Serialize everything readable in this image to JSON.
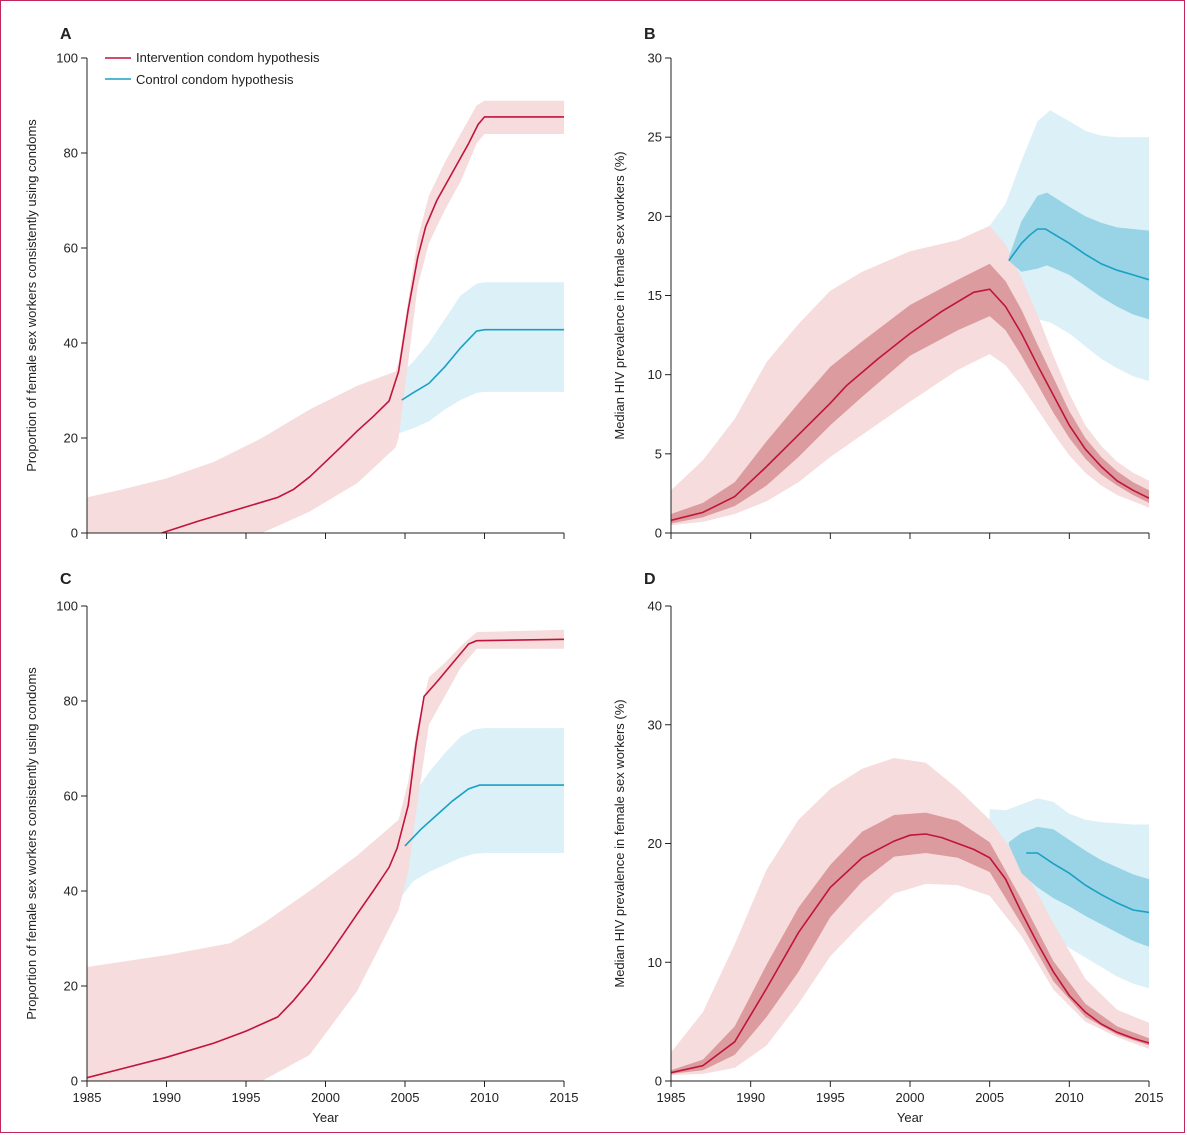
{
  "colors": {
    "intervention": "#c0143c",
    "intervention_band_outer": "#f6dcdc",
    "intervention_band_inner": "#dc9b9e",
    "control": "#1aa0c4",
    "control_band_outer": "#dcf0f7",
    "control_band_inner": "#98d4e6",
    "frame": "#c0285a"
  },
  "legend": [
    {
      "label": "Intervention condom hypothesis",
      "color": "#c0143c"
    },
    {
      "label": "Control condom hypothesis",
      "color": "#1aa0c4"
    }
  ],
  "chart_data": [
    {
      "panel": "A",
      "type": "line",
      "ylabel": "Proportion of female sex workers consistently using condoms",
      "xlabel": "",
      "xlim": [
        1985,
        2015
      ],
      "ylim": [
        0,
        100
      ],
      "xticks": [
        1985,
        1990,
        1995,
        2000,
        2005,
        2010,
        2015
      ],
      "yticks": [
        0,
        20,
        40,
        60,
        80,
        100
      ],
      "show_xtick_labels": false,
      "series": [
        {
          "name": "Intervention condom hypothesis",
          "color": "#c0143c",
          "x": [
            1989.7,
            1992,
            1995,
            1997,
            1998,
            1999,
            2000,
            2001,
            2002,
            2003,
            2004,
            2004.6,
            2005.2,
            2005.8,
            2006.3,
            2007,
            2008,
            2009,
            2009.6,
            2010,
            2015
          ],
          "median": [
            0,
            2.5,
            5.5,
            7.5,
            9.2,
            11.8,
            15,
            18.2,
            21.5,
            24.5,
            27.8,
            34,
            47,
            58,
            64.5,
            70,
            76,
            82,
            86,
            87.6,
            87.6
          ],
          "band_outer": {
            "x": [
              1985,
              1987,
              1990,
              1993,
              1996,
              1999,
              2002,
              2004.4,
              2004.6,
              2005.2,
              2005.8,
              2006.5,
              2007.5,
              2008.5,
              2009.5,
              2010,
              2015
            ],
            "lower": [
              0,
              0,
              0,
              0,
              0,
              4.5,
              10.5,
              18,
              20,
              36,
              52,
              61,
              68,
              74,
              82,
              84,
              84
            ],
            "upper": [
              7.5,
              9,
              11.5,
              15,
              20,
              26,
              31,
              34,
              36,
              49,
              62,
              71,
              78,
              84,
              90,
              91,
              91
            ]
          }
        },
        {
          "name": "Control condom hypothesis",
          "color": "#1aa0c4",
          "x": [
            2004.8,
            2005.5,
            2006.5,
            2007.5,
            2008.5,
            2009.5,
            2010,
            2015
          ],
          "median": [
            28,
            29.5,
            31.5,
            35,
            39,
            42.5,
            42.8,
            42.8
          ],
          "band_outer": {
            "x": [
              2004.6,
              2005.5,
              2006.5,
              2007.5,
              2008.5,
              2009.5,
              2010,
              2015
            ],
            "lower": [
              21,
              22,
              23.5,
              26,
              28,
              29.5,
              29.7,
              29.7
            ],
            "upper": [
              33,
              36,
              40,
              45,
              50,
              52.5,
              52.8,
              52.8
            ]
          }
        }
      ]
    },
    {
      "panel": "B",
      "type": "line",
      "ylabel": "Median HIV prevalence in female sex workers (%)",
      "xlabel": "",
      "xlim": [
        1985,
        2015
      ],
      "ylim": [
        0,
        30
      ],
      "xticks": [
        1985,
        1990,
        1995,
        2000,
        2005,
        2010,
        2015
      ],
      "yticks": [
        0,
        5,
        10,
        15,
        20,
        25,
        30
      ],
      "show_xtick_labels": false,
      "series": [
        {
          "name": "Intervention condom hypothesis",
          "color": "#c0143c",
          "x": [
            1985,
            1987,
            1989,
            1991,
            1993,
            1995,
            1996,
            1998,
            2000,
            2002,
            2004,
            2005,
            2006,
            2007,
            2008,
            2009,
            2010,
            2011,
            2012,
            2013,
            2014,
            2015
          ],
          "median": [
            0.8,
            1.3,
            2.3,
            4.2,
            6.2,
            8.2,
            9.3,
            11,
            12.6,
            14,
            15.2,
            15.4,
            14.3,
            12.6,
            10.6,
            8.7,
            6.8,
            5.3,
            4.2,
            3.3,
            2.7,
            2.2
          ],
          "band_outer": {
            "x": [
              1985,
              1987,
              1989,
              1991,
              1993,
              1995,
              1997,
              2000,
              2003,
              2005,
              2006,
              2007,
              2008,
              2009,
              2010,
              2011,
              2012,
              2013,
              2014,
              2015
            ],
            "lower": [
              0.5,
              0.7,
              1.2,
              2,
              3.2,
              4.8,
              6.2,
              8.3,
              10.3,
              11.3,
              10.6,
              9.3,
              7.8,
              6.3,
              4.9,
              3.8,
              3,
              2.4,
              2,
              1.6
            ],
            "upper": [
              2.7,
              4.6,
              7.2,
              10.8,
              13.2,
              15.3,
              16.5,
              17.8,
              18.5,
              19.4,
              18.2,
              16.1,
              13.8,
              11.2,
              8.8,
              6.8,
              5.5,
              4.5,
              3.8,
              3.3
            ]
          },
          "band_inner": {
            "x": [
              1985,
              1987,
              1989,
              1991,
              1993,
              1995,
              1997,
              2000,
              2003,
              2005,
              2006,
              2007,
              2008,
              2009,
              2010,
              2011,
              2012,
              2013,
              2014,
              2015
            ],
            "lower": [
              0.6,
              1,
              1.7,
              3,
              4.8,
              6.8,
              8.6,
              11.2,
              12.8,
              13.7,
              12.8,
              11.2,
              9.4,
              7.6,
              6,
              4.7,
              3.7,
              3,
              2.4,
              1.9
            ],
            "upper": [
              1.2,
              1.9,
              3.2,
              5.8,
              8.2,
              10.5,
              12.1,
              14.4,
              16,
              17,
              15.9,
              14.1,
              11.9,
              9.8,
              7.7,
              6,
              4.8,
              3.9,
              3.2,
              2.7
            ]
          }
        },
        {
          "name": "Control condom hypothesis",
          "color": "#1aa0c4",
          "x": [
            2006.2,
            2007,
            2007.5,
            2008,
            2008.5,
            2009,
            2010,
            2011,
            2012,
            2013,
            2014,
            2015
          ],
          "median": [
            17.2,
            18.3,
            18.8,
            19.2,
            19.2,
            18.9,
            18.3,
            17.6,
            17,
            16.6,
            16.3,
            16
          ],
          "band_outer": {
            "x": [
              2005,
              2006,
              2007,
              2008,
              2008.8,
              2010,
              2011,
              2012,
              2013,
              2014,
              2015
            ],
            "lower": [
              19.3,
              15.5,
              14.2,
              13.5,
              13.3,
              12.6,
              11.8,
              11,
              10.4,
              9.9,
              9.6
            ],
            "upper": [
              19.4,
              20.8,
              23.5,
              26,
              26.7,
              26,
              25.4,
              25.1,
              25,
              25,
              25
            ]
          },
          "band_inner": {
            "x": [
              2006.2,
              2007,
              2008,
              2008.6,
              2010,
              2011,
              2012,
              2013,
              2014,
              2015
            ],
            "lower": [
              17.2,
              16.5,
              16.7,
              16.9,
              16.3,
              15.6,
              14.9,
              14.3,
              13.8,
              13.5
            ],
            "upper": [
              17.4,
              19.7,
              21.3,
              21.5,
              20.6,
              20,
              19.6,
              19.3,
              19.2,
              19.1
            ]
          }
        }
      ]
    },
    {
      "panel": "C",
      "type": "line",
      "ylabel": "Proportion of female sex workers consistently using condoms",
      "xlabel": "Year",
      "xlim": [
        1985,
        2015
      ],
      "ylim": [
        0,
        100
      ],
      "xticks": [
        1985,
        1990,
        1995,
        2000,
        2005,
        2010,
        2015
      ],
      "yticks": [
        0,
        20,
        40,
        60,
        80,
        100
      ],
      "show_xtick_labels": true,
      "series": [
        {
          "name": "Intervention condom hypothesis",
          "color": "#c0143c",
          "x": [
            1985,
            1990,
            1993,
            1995,
            1997,
            1998,
            1999,
            2000,
            2001,
            2002,
            2003,
            2004,
            2004.5,
            2005.2,
            2005.7,
            2006.2,
            2007,
            2008,
            2009,
            2009.5,
            2015
          ],
          "median": [
            0.7,
            5,
            8,
            10.5,
            13.5,
            17,
            21,
            25.5,
            30.3,
            35.2,
            40,
            45,
            49,
            58,
            71,
            81,
            84,
            88,
            92,
            92.7,
            93
          ],
          "band_outer": {
            "x": [
              1985,
              1990,
              1994,
              1996,
              1999,
              2002,
              2004.6,
              2005.2,
              2005.8,
              2006.5,
              2007.5,
              2008.5,
              2009.5,
              2015
            ],
            "lower": [
              0,
              0,
              0,
              0,
              5.5,
              19,
              36,
              44,
              59,
              75,
              81,
              87,
              91,
              91
            ],
            "upper": [
              24,
              26.5,
              29,
              33,
              40,
              47.5,
              55,
              63,
              75,
              85,
              88,
              91.5,
              94.5,
              95
            ]
          }
        },
        {
          "name": "Control condom hypothesis",
          "color": "#1aa0c4",
          "x": [
            2005,
            2006,
            2007,
            2008,
            2009,
            2009.7,
            2010,
            2015
          ],
          "median": [
            49.5,
            53,
            56,
            59,
            61.5,
            62.3,
            62.3,
            62.3
          ],
          "band_outer": {
            "x": [
              2004.6,
              2005.5,
              2006.5,
              2007.5,
              2008.5,
              2009.3,
              2010,
              2015
            ],
            "lower": [
              38,
              42,
              44,
              45.5,
              47,
              47.8,
              48,
              48
            ],
            "upper": [
              55,
              60,
              65,
              69,
              72.5,
              74,
              74.3,
              74.3
            ]
          }
        }
      ]
    },
    {
      "panel": "D",
      "type": "line",
      "ylabel": "Median HIV prevalence in female sex workers (%)",
      "xlabel": "Year",
      "xlim": [
        1985,
        2015
      ],
      "ylim": [
        0,
        40
      ],
      "xticks": [
        1985,
        1990,
        1995,
        2000,
        2005,
        2010,
        2015
      ],
      "yticks": [
        0,
        10,
        20,
        30,
        40
      ],
      "show_xtick_labels": true,
      "series": [
        {
          "name": "Intervention condom hypothesis",
          "color": "#c0143c",
          "x": [
            1985,
            1987,
            1989,
            1991,
            1993,
            1995,
            1997,
            1999,
            2000,
            2001,
            2002,
            2004,
            2005,
            2006,
            2007,
            2008,
            2009,
            2010,
            2011,
            2012,
            2013,
            2014,
            2015
          ],
          "median": [
            0.7,
            1.3,
            3.3,
            7.8,
            12.5,
            16.3,
            18.8,
            20.2,
            20.7,
            20.8,
            20.5,
            19.5,
            18.8,
            17,
            14.2,
            11.6,
            9.2,
            7.2,
            5.8,
            4.8,
            4.1,
            3.6,
            3.2
          ],
          "band_outer": {
            "x": [
              1985,
              1987,
              1989,
              1991,
              1993,
              1995,
              1997,
              1999,
              2001,
              2003,
              2005,
              2007,
              2009,
              2011,
              2013,
              2015
            ],
            "lower": [
              0.5,
              0.6,
              1.1,
              3,
              6.5,
              10.5,
              13.3,
              15.8,
              16.6,
              16.5,
              15.6,
              12.2,
              7.7,
              5,
              3.7,
              2.7
            ],
            "upper": [
              2.4,
              5.8,
              11.5,
              17.8,
              22,
              24.6,
              26.3,
              27.2,
              26.8,
              24.6,
              22,
              18.3,
              13.3,
              8.6,
              6,
              4.9
            ]
          },
          "band_inner": {
            "x": [
              1985,
              1987,
              1989,
              1991,
              1993,
              1995,
              1997,
              1999,
              2001,
              2003,
              2005,
              2007,
              2009,
              2011,
              2013,
              2015
            ],
            "lower": [
              0.6,
              0.9,
              2.2,
              5.4,
              9.2,
              13.8,
              16.8,
              18.9,
              19.2,
              18.8,
              17.6,
              13.2,
              8.4,
              5.4,
              3.9,
              3
            ],
            "upper": [
              0.9,
              1.8,
              4.6,
              9.8,
              14.6,
              18.2,
              21,
              22.4,
              22.6,
              21.9,
              20.1,
              15.3,
              10.1,
              6.5,
              4.6,
              3.6
            ]
          }
        },
        {
          "name": "Control condom hypothesis",
          "color": "#1aa0c4",
          "x": [
            2007.3,
            2008,
            2009,
            2010,
            2011,
            2012,
            2013,
            2014,
            2015
          ],
          "median": [
            19.2,
            19.2,
            18.3,
            17.5,
            16.5,
            15.7,
            15,
            14.4,
            14.2
          ],
          "band_outer": {
            "x": [
              2005,
              2006,
              2007,
              2008,
              2009,
              2010,
              2011,
              2012,
              2013,
              2014,
              2015
            ],
            "lower": [
              19.2,
              17,
              15,
              13.3,
              12.2,
              11.2,
              10.4,
              9.6,
              8.8,
              8.2,
              7.8
            ],
            "upper": [
              22.9,
              22.8,
              23.3,
              23.8,
              23.5,
              22.5,
              22,
              21.8,
              21.7,
              21.6,
              21.6
            ]
          },
          "band_inner": {
            "x": [
              2006.2,
              2007,
              2008,
              2009,
              2010,
              2011,
              2012,
              2013,
              2014,
              2015
            ],
            "lower": [
              19.9,
              17.5,
              16.3,
              15.4,
              14.7,
              13.9,
              13.2,
              12.5,
              11.8,
              11.3
            ],
            "upper": [
              20.1,
              20.9,
              21.4,
              21.2,
              20.3,
              19.4,
              18.6,
              18,
              17.4,
              17
            ]
          }
        }
      ]
    }
  ]
}
